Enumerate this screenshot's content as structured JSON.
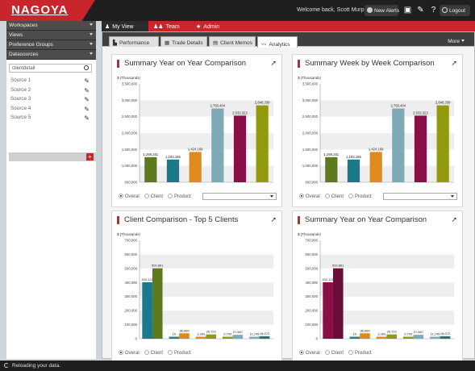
{
  "app": {
    "logo": "NAGOYA",
    "welcome": "Welcome back, Scott Murphy",
    "new_alerts": "New Alerts",
    "logout": "Logout"
  },
  "sidebar": {
    "sections": [
      "Workspaces",
      "Views",
      "Preference Groups",
      "Datasources"
    ],
    "search_value": "clientdetail",
    "sources": [
      "Source 1",
      "Source 2",
      "Source 3",
      "Source 4",
      "Source 5"
    ],
    "add_label": "+"
  },
  "main_tabs": [
    {
      "label": "My View",
      "icon": "person-icon"
    },
    {
      "label": "Team",
      "icon": "team-icon"
    },
    {
      "label": "Admin",
      "icon": "star-icon"
    }
  ],
  "sub_tabs": [
    {
      "label": "Performance",
      "icon": "bar-chart-icon"
    },
    {
      "label": "Trade Details",
      "icon": "grid-icon"
    },
    {
      "label": "Client Memos",
      "icon": "document-icon"
    },
    {
      "label": "Analytics",
      "icon": "line-chart-icon"
    }
  ],
  "more_label": "More",
  "status": "Reloading your data.",
  "radio_options": [
    "Overal",
    "Client",
    "Product"
  ],
  "panels": [
    {
      "title": "Summary Year on Year Comparison",
      "chart_data": {
        "type": "bar",
        "ylabel": "$ (Thousands)",
        "yticks": [
          "3,500,000",
          "3,000,000",
          "2,500,000",
          "2,000,000",
          "1,500,000",
          "1,000,000",
          "500,000"
        ],
        "ylim": [
          500000,
          3500000
        ],
        "values": [
          1266161,
          1193165,
          1424169,
          2750404,
          2532322,
          2846339
        ],
        "labels": [
          "1,266,161",
          "1,193,165",
          "1,424,169",
          "2,750,404",
          "2,532,322",
          "2,846,339"
        ],
        "colors": [
          "#5e7a1e",
          "#1a7a8c",
          "#e08a1c",
          "#7ea9b5",
          "#8a0f46",
          "#939a0f"
        ]
      }
    },
    {
      "title": "Summary Week by Week Comparison",
      "chart_data": {
        "type": "bar",
        "ylabel": "$ (Thousands)",
        "yticks": [
          "3,500,000",
          "3,000,000",
          "2,500,000",
          "2,000,000",
          "1,500,000",
          "1,000,000",
          "500,000"
        ],
        "ylim": [
          500000,
          3500000
        ],
        "values": [
          1266161,
          1193165,
          1424169,
          2750404,
          2532322,
          2846339
        ],
        "labels": [
          "1,266,161",
          "1,193,165",
          "1,424,169",
          "2,750,404",
          "2,532,322",
          "2,846,339"
        ],
        "colors": [
          "#5e7a1e",
          "#1a7a8c",
          "#e08a1c",
          "#7ea9b5",
          "#8a0f46",
          "#939a0f"
        ]
      }
    },
    {
      "title": "Client Comparison - Top 5 Clients",
      "chart_data": {
        "type": "bar",
        "ylabel": "$ (Thousands)",
        "yticks": [
          "700,000",
          "600,000",
          "500,000",
          "400,000",
          "300,000",
          "200,000",
          "100,000",
          "0"
        ],
        "ylim": [
          0,
          700000
        ],
        "groups": [
          {
            "values": [
              402122,
              500851
            ],
            "labels": [
              "402,122",
              "500,851"
            ]
          },
          {
            "values": [
              10,
              38490
            ],
            "labels": [
              "10",
              "38,490"
            ]
          },
          {
            "values": [
              1393,
              30723
            ],
            "labels": [
              "1,393",
              "30,723"
            ]
          },
          {
            "values": [
              9793,
              27667
            ],
            "labels": [
              "9,793",
              "27,667"
            ]
          },
          {
            "values": [
              11145,
              18072
            ],
            "labels": [
              "11,145",
              "18,072"
            ]
          }
        ],
        "colors": [
          "#1a7a8c",
          "#5e7a1e"
        ],
        "small_colors": [
          "#1a7a8c",
          "#2a7f8e",
          "#e08a1c",
          "#939a0f",
          "#7ea9b5"
        ]
      }
    },
    {
      "title": "Summary Year on Year Comparison",
      "chart_data": {
        "type": "bar",
        "ylabel": "$ (Thousands)",
        "yticks": [
          "700,000",
          "600,000",
          "500,000",
          "400,000",
          "300,000",
          "200,000",
          "100,000",
          "0"
        ],
        "ylim": [
          0,
          700000
        ],
        "groups": [
          {
            "values": [
              402122,
              500851
            ],
            "labels": [
              "402,122",
              "500,851"
            ]
          },
          {
            "values": [
              10,
              38490
            ],
            "labels": [
              "10",
              "38,490"
            ]
          },
          {
            "values": [
              1393,
              30723
            ],
            "labels": [
              "1,393",
              "30,723"
            ]
          },
          {
            "values": [
              9793,
              27667
            ],
            "labels": [
              "9,793",
              "27,667"
            ]
          },
          {
            "values": [
              11145,
              18072
            ],
            "labels": [
              "11,145",
              "18,072"
            ]
          }
        ],
        "colors": [
          "#8a0f46",
          "#6a0d3a"
        ],
        "small_colors": [
          "#1a7a8c",
          "#2a7f8e",
          "#e08a1c",
          "#939a0f",
          "#7ea9b5"
        ]
      }
    }
  ]
}
